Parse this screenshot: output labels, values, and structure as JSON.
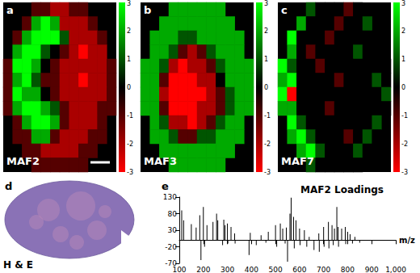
{
  "chart_data": [
    {
      "type": "heatmap",
      "panel": "a",
      "label": "MAF2",
      "colorbar_range": [
        -3,
        3
      ],
      "colorbar_ticks": [
        3,
        2,
        1,
        0,
        -1,
        -2,
        -3
      ],
      "cells": [
        [
          null,
          null,
          null,
          -1,
          -1,
          -2,
          -2,
          -1,
          -1,
          null,
          null,
          null
        ],
        [
          null,
          null,
          -1,
          2,
          3,
          2,
          -2,
          -2,
          -2,
          -1,
          null,
          null
        ],
        [
          null,
          -1,
          2,
          3,
          3,
          3,
          1,
          -2,
          -2,
          -2,
          -1,
          null
        ],
        [
          null,
          2,
          3,
          3,
          1,
          0,
          -1,
          -2,
          -3,
          -2,
          -2,
          null
        ],
        [
          -1,
          3,
          3,
          2,
          0,
          -1,
          -2,
          -2,
          -2,
          -2,
          -2,
          -1
        ],
        [
          -1,
          2,
          3,
          1,
          -1,
          -1,
          -2,
          -2,
          -3,
          -2,
          -2,
          -1
        ],
        [
          -1,
          3,
          2,
          2,
          0,
          -1,
          -2,
          -2,
          -2,
          -2,
          -2,
          -1
        ],
        [
          -1,
          2,
          3,
          3,
          2,
          1,
          -1,
          -2,
          -2,
          -2,
          -1,
          -1
        ],
        [
          null,
          -1,
          2,
          3,
          3,
          2,
          -1,
          -2,
          -2,
          -2,
          -1,
          null
        ],
        [
          null,
          -1,
          -1,
          2,
          2,
          -1,
          -2,
          -2,
          -2,
          -1,
          -1,
          null
        ],
        [
          null,
          null,
          -1,
          -1,
          -2,
          -2,
          -2,
          -2,
          -1,
          -1,
          null,
          null
        ],
        [
          null,
          null,
          null,
          -1,
          -1,
          -1,
          -1,
          -1,
          -1,
          null,
          null,
          null
        ]
      ]
    },
    {
      "type": "heatmap",
      "panel": "b",
      "label": "MAF3",
      "colorbar_range": [
        -3,
        3
      ],
      "colorbar_ticks": [
        3,
        2,
        1,
        0,
        -1,
        -2,
        -3
      ],
      "cells": [
        [
          null,
          null,
          null,
          2,
          2,
          2,
          2,
          2,
          2,
          null,
          null,
          null
        ],
        [
          null,
          null,
          2,
          2,
          2,
          2,
          2,
          2,
          2,
          2,
          null,
          null
        ],
        [
          null,
          2,
          2,
          2,
          1,
          1,
          2,
          2,
          2,
          2,
          2,
          null
        ],
        [
          null,
          2,
          2,
          1,
          -1,
          -2,
          -1,
          1,
          2,
          2,
          2,
          null
        ],
        [
          2,
          2,
          1,
          -2,
          -3,
          -2,
          -2,
          -1,
          1,
          2,
          2,
          2
        ],
        [
          2,
          2,
          -1,
          -3,
          -3,
          -3,
          -2,
          -2,
          0,
          2,
          2,
          2
        ],
        [
          2,
          2,
          -2,
          -3,
          -3,
          -3,
          -3,
          -2,
          -1,
          1,
          2,
          2
        ],
        [
          2,
          2,
          -1,
          -3,
          -3,
          -3,
          -2,
          -2,
          -1,
          1,
          2,
          2
        ],
        [
          null,
          2,
          1,
          -2,
          -2,
          -3,
          -2,
          -1,
          1,
          2,
          2,
          null
        ],
        [
          null,
          2,
          2,
          1,
          -1,
          -1,
          1,
          1,
          2,
          2,
          2,
          null
        ],
        [
          null,
          null,
          2,
          2,
          2,
          2,
          2,
          2,
          2,
          2,
          null,
          null
        ],
        [
          null,
          null,
          null,
          2,
          2,
          2,
          2,
          2,
          2,
          null,
          null,
          null
        ]
      ]
    },
    {
      "type": "heatmap",
      "panel": "c",
      "label": "MAF7",
      "colorbar_range": [
        -3,
        3
      ],
      "colorbar_ticks": [
        3,
        2,
        1,
        0,
        -1,
        -2,
        -3
      ],
      "cells": [
        [
          null,
          null,
          null,
          1,
          0,
          0,
          0,
          -1,
          0,
          null,
          null,
          null
        ],
        [
          null,
          null,
          2,
          0,
          0,
          0,
          -1,
          0,
          0,
          1,
          null,
          null
        ],
        [
          null,
          3,
          0,
          0,
          0,
          -1,
          0,
          0,
          0,
          0,
          0,
          null
        ],
        [
          null,
          2,
          0,
          -1,
          0,
          0,
          0,
          0,
          1,
          0,
          0,
          null
        ],
        [
          3,
          1,
          0,
          0,
          -1,
          0,
          0,
          0,
          0,
          0,
          0,
          0
        ],
        [
          2,
          3,
          0,
          0,
          0,
          0,
          -1,
          0,
          0,
          0,
          1,
          0
        ],
        [
          3,
          -3,
          0,
          0,
          0,
          0,
          0,
          0,
          0,
          0,
          0,
          1
        ],
        [
          2,
          2,
          0,
          0,
          0,
          -1,
          0,
          0,
          0,
          0,
          0,
          0
        ],
        [
          null,
          3,
          1,
          0,
          0,
          0,
          0,
          0,
          0,
          0,
          1,
          null
        ],
        [
          null,
          2,
          3,
          1,
          0,
          0,
          0,
          -1,
          0,
          1,
          0,
          null
        ],
        [
          null,
          null,
          2,
          3,
          1,
          0,
          0,
          0,
          1,
          0,
          null,
          null
        ],
        [
          null,
          null,
          null,
          1,
          0,
          0,
          0,
          0,
          0,
          null,
          null,
          null
        ]
      ]
    },
    {
      "type": "image",
      "panel": "d",
      "label": "H & E"
    },
    {
      "type": "bar",
      "panel": "e",
      "title": "MAF2 Loadings",
      "xlabel": "m/z",
      "color": "#000000",
      "x": [
        110,
        118,
        150,
        170,
        185,
        190,
        200,
        205,
        215,
        240,
        255,
        260,
        280,
        285,
        290,
        300,
        302,
        315,
        330,
        332,
        390,
        395,
        420,
        440,
        460,
        470,
        500,
        505,
        520,
        530,
        540,
        545,
        550,
        560,
        565,
        575,
        578,
        585,
        600,
        602,
        620,
        630,
        640,
        660,
        680,
        682,
        700,
        702,
        720,
        722,
        735,
        740,
        745,
        755,
        760,
        762,
        775,
        790,
        792,
        800,
        810,
        820,
        830,
        850
      ],
      "values": [
        90,
        60,
        48,
        38,
        75,
        -60,
        100,
        -20,
        45,
        55,
        80,
        60,
        -15,
        62,
        45,
        50,
        -10,
        40,
        20,
        -10,
        -45,
        22,
        -15,
        15,
        -8,
        25,
        45,
        -20,
        50,
        35,
        -10,
        38,
        -65,
        80,
        128,
        70,
        -25,
        60,
        35,
        -15,
        30,
        -20,
        10,
        -30,
        20,
        -35,
        40,
        -20,
        55,
        -25,
        45,
        -15,
        35,
        100,
        40,
        -20,
        35,
        40,
        -12,
        25,
        18,
        -10,
        10,
        -8
      ],
      "xlim": [
        100,
        1000
      ],
      "xticks": [
        100,
        200,
        300,
        400,
        500,
        600,
        700,
        800,
        900,
        1000
      ],
      "ylim": [
        -70,
        130
      ],
      "yticks": [
        130,
        80,
        30,
        -20,
        -70
      ],
      "grid": false
    }
  ]
}
